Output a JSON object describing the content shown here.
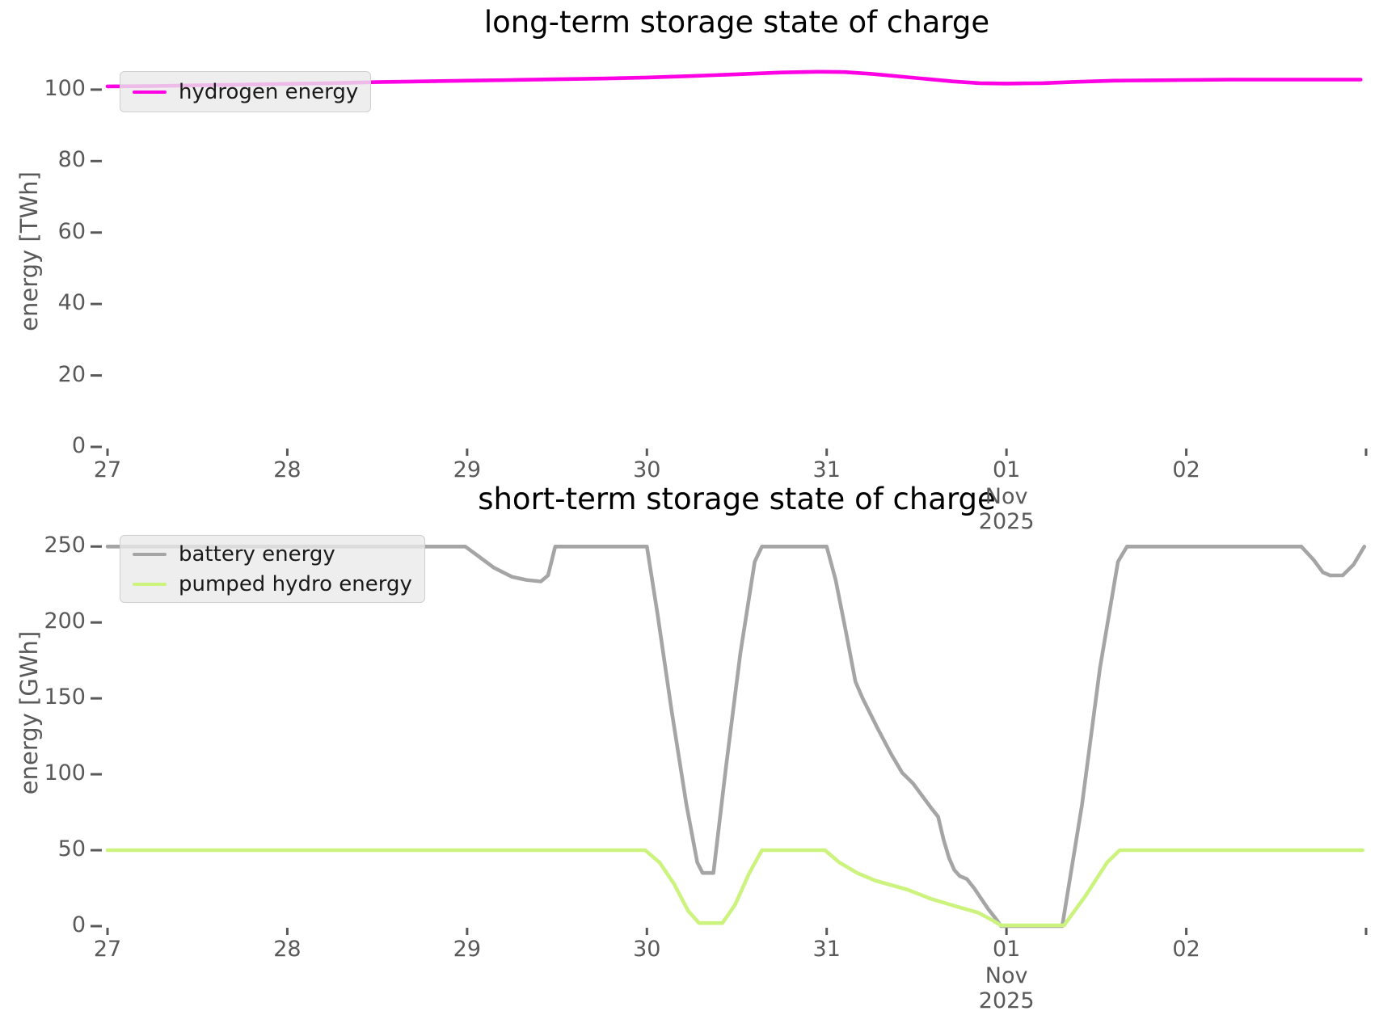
{
  "chart_data": [
    {
      "type": "line",
      "title": "long-term storage state of charge",
      "xlabel": "",
      "ylabel": "energy [TWh]",
      "x_unit": "days since 2025-10-27 00:00",
      "xtick_positions": [
        0,
        1,
        2,
        3,
        4,
        5,
        6,
        7
      ],
      "xtick_labels": [
        "27",
        "28",
        "29",
        "30",
        "31",
        "01",
        "02",
        ""
      ],
      "month_label": "Nov",
      "year_label": "2025",
      "month_tick_index": 5,
      "ylim": [
        0,
        110
      ],
      "yticks": [
        0,
        20,
        40,
        60,
        80,
        100
      ],
      "grid": false,
      "legend_position": "upper left",
      "series": [
        {
          "name": "hydrogen energy",
          "color": "#ff00e5",
          "points": [
            [
              0,
              100.9
            ],
            [
              0.25,
              101.0
            ],
            [
              0.5,
              101.2
            ],
            [
              0.75,
              101.4
            ],
            [
              1,
              101.6
            ],
            [
              1.25,
              101.8
            ],
            [
              1.5,
              102.1
            ],
            [
              1.75,
              102.3
            ],
            [
              2,
              102.5
            ],
            [
              2.25,
              102.7
            ],
            [
              2.5,
              102.9
            ],
            [
              2.75,
              103.1
            ],
            [
              3,
              103.4
            ],
            [
              3.25,
              103.8
            ],
            [
              3.5,
              104.3
            ],
            [
              3.75,
              104.8
            ],
            [
              3.95,
              105.0
            ],
            [
              4.1,
              104.9
            ],
            [
              4.25,
              104.4
            ],
            [
              4.4,
              103.7
            ],
            [
              4.55,
              103.0
            ],
            [
              4.7,
              102.3
            ],
            [
              4.85,
              101.8
            ],
            [
              5,
              101.7
            ],
            [
              5.2,
              101.8
            ],
            [
              5.4,
              102.2
            ],
            [
              5.6,
              102.5
            ],
            [
              5.8,
              102.6
            ],
            [
              6,
              102.7
            ],
            [
              6.25,
              102.8
            ],
            [
              6.5,
              102.8
            ],
            [
              6.75,
              102.8
            ],
            [
              6.97,
              102.8
            ]
          ]
        }
      ]
    },
    {
      "type": "line",
      "title": "short-term storage state of charge",
      "xlabel": "",
      "ylabel": "energy [GWh]",
      "x_unit": "days since 2025-10-27 00:00",
      "xtick_positions": [
        0,
        1,
        2,
        3,
        4,
        5,
        6,
        7
      ],
      "xtick_labels": [
        "27",
        "28",
        "29",
        "30",
        "31",
        "01",
        "02",
        ""
      ],
      "month_label": "Nov",
      "year_label": "2025",
      "month_tick_index": 5,
      "ylim": [
        0,
        262
      ],
      "yticks": [
        0,
        50,
        100,
        150,
        200,
        250
      ],
      "grid": false,
      "legend_position": "upper left",
      "series": [
        {
          "name": "battery energy",
          "color": "#a5a5a5",
          "points": [
            [
              0,
              250
            ],
            [
              1.99,
              250
            ],
            [
              2.07,
              243
            ],
            [
              2.15,
              236
            ],
            [
              2.25,
              230
            ],
            [
              2.33,
              228
            ],
            [
              2.41,
              227
            ],
            [
              2.45,
              231
            ],
            [
              2.49,
              250
            ],
            [
              3.0,
              250
            ],
            [
              3.06,
              205
            ],
            [
              3.14,
              140
            ],
            [
              3.22,
              80
            ],
            [
              3.28,
              42
            ],
            [
              3.31,
              35
            ],
            [
              3.37,
              35
            ],
            [
              3.44,
              105
            ],
            [
              3.52,
              180
            ],
            [
              3.6,
              240
            ],
            [
              3.64,
              250
            ],
            [
              4.0,
              250
            ],
            [
              4.05,
              228
            ],
            [
              4.11,
              192
            ],
            [
              4.16,
              161
            ],
            [
              4.2,
              150
            ],
            [
              4.28,
              131
            ],
            [
              4.36,
              113
            ],
            [
              4.42,
              101
            ],
            [
              4.48,
              94
            ],
            [
              4.53,
              86
            ],
            [
              4.58,
              78
            ],
            [
              4.62,
              72
            ],
            [
              4.65,
              57
            ],
            [
              4.68,
              45
            ],
            [
              4.71,
              37
            ],
            [
              4.74,
              33
            ],
            [
              4.78,
              31
            ],
            [
              4.82,
              25
            ],
            [
              4.86,
              18
            ],
            [
              4.9,
              11
            ],
            [
              4.94,
              5
            ],
            [
              4.97,
              0
            ],
            [
              5.31,
              0
            ],
            [
              5.42,
              80
            ],
            [
              5.52,
              170
            ],
            [
              5.62,
              240
            ],
            [
              5.67,
              250
            ],
            [
              6.64,
              250
            ],
            [
              6.71,
              241
            ],
            [
              6.76,
              233
            ],
            [
              6.8,
              231
            ],
            [
              6.87,
              231
            ],
            [
              6.93,
              238
            ],
            [
              6.99,
              250
            ]
          ]
        },
        {
          "name": "pumped hydro energy",
          "color": "#ccf37e",
          "points": [
            [
              0,
              50
            ],
            [
              2.99,
              50
            ],
            [
              3.07,
              42
            ],
            [
              3.15,
              28
            ],
            [
              3.23,
              10
            ],
            [
              3.29,
              2
            ],
            [
              3.42,
              2
            ],
            [
              3.49,
              14
            ],
            [
              3.57,
              35
            ],
            [
              3.64,
              50
            ],
            [
              3.99,
              50
            ],
            [
              4.07,
              42
            ],
            [
              4.17,
              35
            ],
            [
              4.27,
              30
            ],
            [
              4.45,
              24
            ],
            [
              4.58,
              18
            ],
            [
              4.72,
              13
            ],
            [
              4.84,
              9
            ],
            [
              4.92,
              4
            ],
            [
              4.97,
              0.5
            ],
            [
              5.32,
              0.5
            ],
            [
              5.44,
              20
            ],
            [
              5.56,
              42
            ],
            [
              5.63,
              50
            ],
            [
              6.98,
              50
            ]
          ]
        }
      ]
    }
  ]
}
